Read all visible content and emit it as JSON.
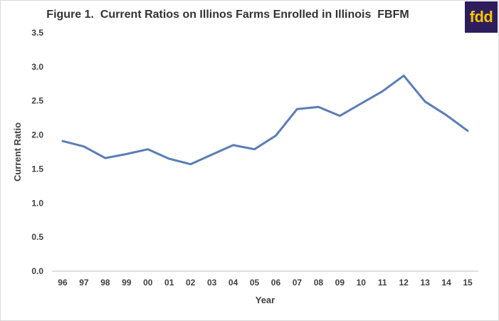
{
  "chart_data": {
    "type": "line",
    "title": "Figure 1.  Current Ratios on Illinos Farms Enrolled in Illinois  FBFM",
    "xlabel": "Year",
    "ylabel": "Current Ratio",
    "categories": [
      "96",
      "97",
      "98",
      "99",
      "00",
      "01",
      "02",
      "03",
      "04",
      "05",
      "06",
      "07",
      "08",
      "09",
      "10",
      "11",
      "12",
      "13",
      "14",
      "15"
    ],
    "values": [
      1.91,
      1.83,
      1.66,
      1.72,
      1.79,
      1.65,
      1.57,
      1.71,
      1.85,
      1.79,
      1.99,
      2.38,
      2.41,
      2.28,
      2.46,
      2.64,
      2.87,
      2.49,
      2.29,
      2.06
    ],
    "ylim": [
      0,
      3.5
    ],
    "yticks": [
      "0.0",
      "0.5",
      "1.0",
      "1.5",
      "2.0",
      "2.5",
      "3.0",
      "3.5"
    ],
    "grid": false,
    "line_color": "#5a7db5"
  },
  "logo": {
    "text": "fdd",
    "background": "#2e1d5c",
    "color": "#f2c400"
  }
}
